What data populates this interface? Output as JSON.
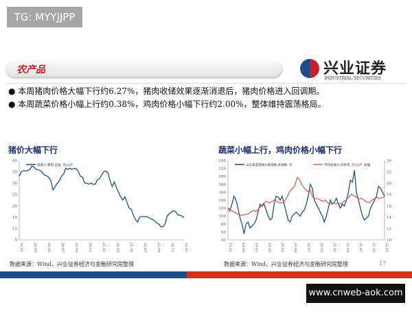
{
  "watermark_top": "TG: MYYJJPP",
  "watermark_bottom": "www.cnweb-aok.com",
  "header": {
    "section": "农产品",
    "logo_cn": "兴业证券",
    "logo_en": "INDUSTRIAL SECURITIES"
  },
  "bullets": [
    "● 本周猪肉价格大幅下行约6.27%，猪肉收储效果逐渐消退后，猪肉价格进入回调期。",
    "● 本周蔬菜价格小幅上行约0.38%，鸡肉价格小幅下行约2.00%，整体维持震荡格局。"
  ],
  "source": "数据来源：Wind，兴业证券经济与金融研究院整理",
  "page_number": "17",
  "colors": {
    "blue": "#1f4e8c",
    "red": "#e05a5a",
    "band_blue": "#1f4e8c",
    "band_red": "#d9301e"
  },
  "chart_data": [
    {
      "type": "line",
      "title": "猪价大幅下行",
      "ylim": [
        5,
        40
      ],
      "yticks": [
        "5",
        "10",
        "15",
        "20",
        "25",
        "30",
        "35",
        "40"
      ],
      "xticks": [
        "20-01",
        "20-03",
        "20-05",
        "20-07",
        "20-09",
        "20-11",
        "21-01",
        "21-03",
        "21-05",
        "21-07",
        "21-09",
        "21-11",
        "22-01"
      ],
      "series": [
        {
          "name": "批发价:猪肉:全国, 元/公斤",
          "values": [
            33,
            35,
            35.5,
            35.3,
            35.5,
            36,
            37.5,
            37,
            36,
            35.8,
            35.5,
            34.5,
            33.5,
            33.2,
            32.5,
            31,
            27,
            28.5,
            30,
            31,
            33,
            34,
            36.5,
            36,
            36.5,
            36,
            36.5,
            36.3,
            35,
            33,
            32.5,
            30,
            30,
            29.5,
            30,
            29.5,
            29.5,
            31.5,
            32,
            33.5,
            35,
            35.3,
            34.5,
            31,
            28.5,
            30.5,
            28,
            26,
            24,
            22.5,
            24,
            21.5,
            19,
            18.5,
            16,
            14,
            12.8,
            15,
            15.3,
            15.3,
            15.2,
            15,
            14.5,
            14,
            13.5,
            12.5,
            12,
            10.8,
            10.8,
            12,
            15.5,
            16.5,
            17.2,
            17.8,
            17.5,
            16,
            15.8,
            15.5,
            14.8
          ]
        }
      ]
    },
    {
      "type": "line",
      "title": "蔬菜小幅上行，鸡肉价格小幅下行",
      "ylim": [
        40,
        240
      ],
      "y2lim": [
        10,
        24
      ],
      "yticks": [
        "40",
        "60",
        "80",
        "100",
        "120",
        "140",
        "160",
        "180",
        "200",
        "220",
        "240"
      ],
      "y2ticks": [
        "10",
        "12",
        "14",
        "16",
        "18",
        "20",
        "22",
        "24"
      ],
      "xticks": [
        "19-01",
        "19-04",
        "19-07",
        "19-10",
        "20-01",
        "20-04",
        "20-07",
        "20-10",
        "21-01",
        "21-04",
        "21-07",
        "21-10",
        "22-01"
      ],
      "series": [
        {
          "name": "山东蔬菜批发价格指数:总指数, 点",
          "axis": "left",
          "values": [
            120,
            115,
            130,
            150,
            140,
            120,
            95,
            80,
            55,
            80,
            85,
            70,
            75,
            80,
            90,
            110,
            130,
            125,
            130,
            115,
            100,
            90,
            95,
            130,
            150,
            148,
            140,
            150,
            130,
            110,
            90,
            85,
            100,
            105,
            110,
            105,
            100,
            110,
            115,
            130,
            150,
            180,
            170,
            140,
            130,
            120,
            110,
            100,
            85,
            100,
            120,
            140,
            130,
            135,
            145,
            130,
            120,
            130,
            125,
            140,
            160,
            190,
            185,
            215,
            160,
            140,
            120,
            100,
            90,
            95,
            100,
            120,
            130,
            140,
            150,
            175,
            170,
            160,
            150
          ]
        },
        {
          "name": "平均批发价:白条鸡, 元/公斤, 右轴",
          "axis": "right",
          "values": [
            15,
            15.2,
            15,
            14.8,
            14.5,
            14.3,
            14.4,
            14.5,
            14.6,
            15,
            15.2,
            15,
            15.5,
            16,
            16.5,
            16.8,
            16.5,
            16.7,
            17,
            16.8,
            16.5,
            16.5,
            16.8,
            17.5,
            18.5,
            19,
            19.5,
            21,
            20.5,
            19.5,
            19,
            18.5,
            18.8,
            17.5,
            17.2,
            17.3,
            17,
            16.8,
            17,
            16.5,
            16.3,
            16.5,
            16.4,
            16.5,
            16.3,
            16.7,
            17,
            17.5,
            18,
            17.8,
            17.5,
            17.2,
            17.3,
            17,
            16.7,
            16.5,
            17,
            17.2,
            17.5,
            17.3,
            17.4,
            17.6
          ]
        }
      ]
    }
  ]
}
